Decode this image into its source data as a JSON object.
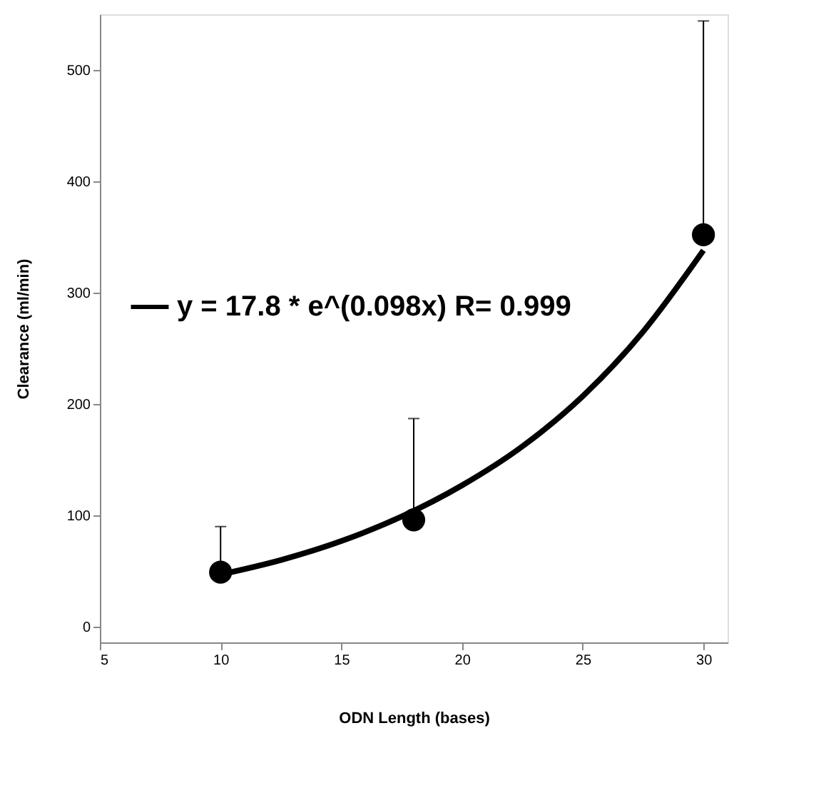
{
  "chart_data": {
    "type": "scatter",
    "xlabel": "ODN Length (bases)",
    "ylabel": "Clearance (ml/min)",
    "xlim": [
      5,
      31
    ],
    "xticks": [
      5,
      10,
      15,
      20,
      25,
      30
    ],
    "ylim": [
      -14,
      550
    ],
    "yticks": [
      0,
      100,
      200,
      300,
      400,
      500
    ],
    "grid": false,
    "legend": "left",
    "series": [
      {
        "color": "#000000",
        "marker": "circle",
        "x": [
          10,
          18,
          30
        ],
        "values": [
          49,
          96,
          352
        ],
        "errors": [
          [
            49,
            90
          ],
          [
            96,
            187
          ],
          [
            352,
            544
          ]
        ]
      },
      {
        "type": "line",
        "name": "y = 17.8 * e^(0.098x)   R= 0.999",
        "color": "#000000",
        "line_style": "solid",
        "x": [
          10,
          12.5,
          15,
          17.5,
          20,
          22.5,
          25,
          27.5,
          30
        ],
        "values": [
          47,
          60,
          77,
          99,
          127,
          162,
          207,
          265,
          338
        ]
      }
    ]
  }
}
